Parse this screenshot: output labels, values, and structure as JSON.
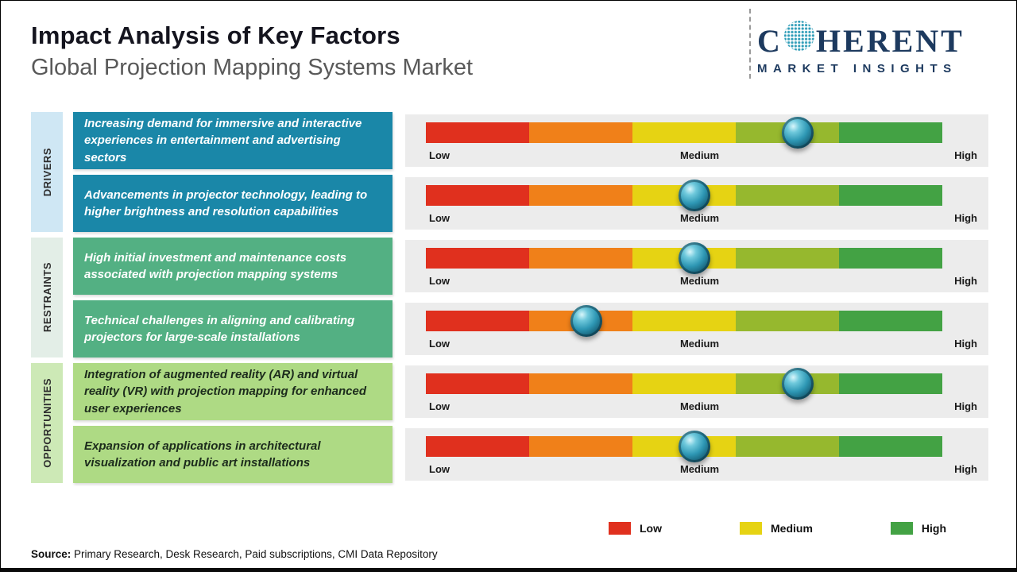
{
  "header": {
    "title": "Impact Analysis of Key Factors",
    "subtitle": "Global Projection Mapping Systems Market"
  },
  "logo": {
    "prefix": "C",
    "suffix": "HERENT",
    "tagline": "MARKET INSIGHTS",
    "text_color": "#1d3a5f",
    "globe_color": "#2f9db8"
  },
  "chart_data": {
    "type": "gauge",
    "title": "Impact Analysis of Key Factors",
    "scale_labels": [
      "Low",
      "Medium",
      "High"
    ],
    "range": [
      0,
      1
    ],
    "rows": [
      {
        "category": "DRIVERS",
        "label": "Increasing demand for immersive and interactive experiences in entertainment and advertising sectors",
        "value": 0.72
      },
      {
        "category": "DRIVERS",
        "label": "Advancements in projector technology, leading to higher brightness and resolution capabilities",
        "value": 0.52
      },
      {
        "category": "RESTRAINTS",
        "label": "High initial investment and maintenance costs associated with projection mapping systems",
        "value": 0.52
      },
      {
        "category": "RESTRAINTS",
        "label": "Technical challenges in aligning and calibrating projectors for large-scale installations",
        "value": 0.31
      },
      {
        "category": "OPPORTUNITIES",
        "label": "Integration of augmented reality (AR) and virtual reality (VR) with projection mapping for enhanced user experiences",
        "value": 0.72
      },
      {
        "category": "OPPORTUNITIES",
        "label": "Expansion of applications in architectural visualization and public art installations",
        "value": 0.52
      }
    ]
  },
  "groups": [
    {
      "label": "DRIVERS",
      "strip_color": "#cfe7f4",
      "box_color": "#1a87a8",
      "box_text_color": "#ffffff",
      "row_indices": [
        0,
        1
      ]
    },
    {
      "label": "RESTRAINTS",
      "strip_color": "#e3eee7",
      "box_color": "#53b083",
      "box_text_color": "#ffffff",
      "row_indices": [
        2,
        3
      ]
    },
    {
      "label": "OPPORTUNITIES",
      "strip_color": "#cde9b6",
      "box_color": "#aeda84",
      "box_text_color": "#1c2b1c",
      "row_indices": [
        4,
        5
      ]
    }
  ],
  "gauge": {
    "segment_colors": [
      "#e0301e",
      "#f08019",
      "#e6d313",
      "#96b82e",
      "#43a244"
    ],
    "panel_color": "#ececec",
    "marker_color": "#2e97b4"
  },
  "legend": {
    "items": [
      {
        "label": "Low",
        "color": "#e0301e"
      },
      {
        "label": "Medium",
        "color": "#e6d313"
      },
      {
        "label": "High",
        "color": "#43a244"
      }
    ]
  },
  "source": {
    "label": "Source:",
    "text": " Primary Research, Desk Research, Paid subscriptions, CMI Data Repository"
  }
}
